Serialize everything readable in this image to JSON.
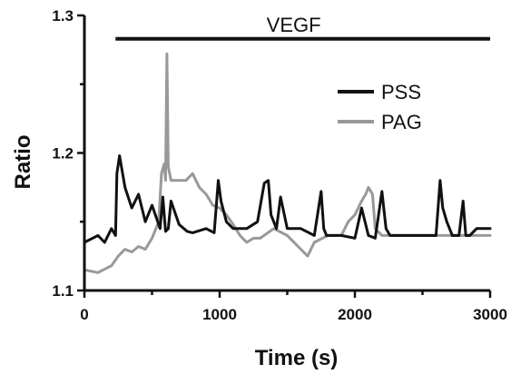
{
  "chart_data": {
    "type": "line",
    "title": "",
    "xlabel": "Time (s)",
    "ylabel": "Ratio",
    "xlim": [
      0,
      3000
    ],
    "ylim": [
      1.1,
      1.3
    ],
    "xticks": [
      0,
      1000,
      2000,
      3000
    ],
    "xtick_labels": [
      "0",
      "1000",
      "2000",
      "3000"
    ],
    "yticks": [
      1.1,
      1.2,
      1.3
    ],
    "ytick_labels": [
      "1.1",
      "1.2",
      "1.3"
    ],
    "grid": false,
    "legend_position": "top-right",
    "annotation": {
      "text": "VEGF",
      "x_start": 230,
      "x_end": 3000,
      "y": 1.283
    },
    "series": [
      {
        "name": "PSS",
        "color": "#111111",
        "x": [
          0,
          100,
          150,
          200,
          230,
          240,
          260,
          300,
          350,
          400,
          450,
          500,
          560,
          580,
          600,
          620,
          640,
          700,
          760,
          800,
          900,
          960,
          990,
          1010,
          1050,
          1100,
          1200,
          1280,
          1330,
          1360,
          1380,
          1420,
          1450,
          1500,
          1600,
          1700,
          1750,
          1770,
          1790,
          1850,
          1900,
          2000,
          2050,
          2100,
          2150,
          2200,
          2230,
          2260,
          2300,
          2400,
          2500,
          2600,
          2630,
          2650,
          2680,
          2720,
          2770,
          2800,
          2820,
          2850,
          2900,
          3000
        ],
        "y": [
          1.135,
          1.14,
          1.135,
          1.145,
          1.14,
          1.185,
          1.198,
          1.175,
          1.16,
          1.17,
          1.15,
          1.162,
          1.145,
          1.168,
          1.143,
          1.145,
          1.165,
          1.148,
          1.143,
          1.142,
          1.145,
          1.142,
          1.18,
          1.165,
          1.15,
          1.145,
          1.145,
          1.15,
          1.178,
          1.18,
          1.155,
          1.145,
          1.168,
          1.145,
          1.145,
          1.14,
          1.172,
          1.145,
          1.14,
          1.14,
          1.14,
          1.138,
          1.16,
          1.14,
          1.138,
          1.172,
          1.145,
          1.14,
          1.14,
          1.14,
          1.14,
          1.14,
          1.18,
          1.16,
          1.15,
          1.14,
          1.14,
          1.165,
          1.14,
          1.14,
          1.145,
          1.145
        ]
      },
      {
        "name": "PAG",
        "color": "#999999",
        "x": [
          0,
          100,
          200,
          250,
          300,
          350,
          400,
          450,
          500,
          550,
          570,
          590,
          600,
          610,
          620,
          630,
          640,
          700,
          750,
          800,
          850,
          900,
          950,
          1000,
          1050,
          1100,
          1150,
          1200,
          1250,
          1300,
          1400,
          1500,
          1600,
          1650,
          1700,
          1800,
          1900,
          1950,
          2000,
          2050,
          2080,
          2100,
          2130,
          2150,
          2200,
          2300,
          2400,
          2500,
          2600,
          2700,
          2800,
          2900,
          3000
        ],
        "y": [
          1.115,
          1.113,
          1.118,
          1.125,
          1.13,
          1.128,
          1.132,
          1.13,
          1.138,
          1.15,
          1.185,
          1.192,
          1.18,
          1.272,
          1.19,
          1.185,
          1.18,
          1.18,
          1.18,
          1.185,
          1.175,
          1.17,
          1.162,
          1.16,
          1.155,
          1.148,
          1.14,
          1.135,
          1.138,
          1.138,
          1.145,
          1.14,
          1.13,
          1.125,
          1.135,
          1.14,
          1.14,
          1.15,
          1.155,
          1.165,
          1.17,
          1.175,
          1.17,
          1.145,
          1.14,
          1.14,
          1.14,
          1.14,
          1.14,
          1.14,
          1.14,
          1.14,
          1.14
        ]
      }
    ]
  }
}
